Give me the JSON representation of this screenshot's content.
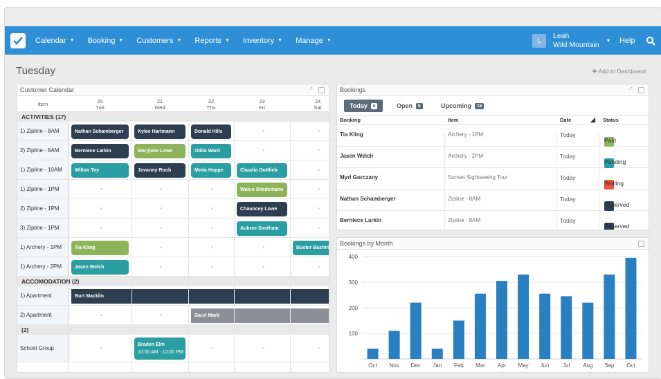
{
  "nav": {
    "items": [
      "Calendar",
      "Booking",
      "Customers",
      "Reports",
      "Inventory",
      "Manage"
    ],
    "user_initial": "L",
    "user_name": "Leah",
    "user_org": "Wild Mountain",
    "help": "Help"
  },
  "page": {
    "title": "Tuesday",
    "add_dashboard": "Add to Dashboard"
  },
  "calendar": {
    "title": "Customer Calendar",
    "item_header": "Item",
    "days": [
      {
        "num": "20",
        "day": "Tue"
      },
      {
        "num": "21",
        "day": "Wed"
      },
      {
        "num": "22",
        "day": "Thu"
      },
      {
        "num": "23",
        "day": "Fri"
      },
      {
        "num": "24",
        "day": "Sat"
      }
    ],
    "sections": [
      {
        "title": "ACTIVITIES (17)",
        "rows": [
          {
            "label": "1) Zipline - 8AM",
            "events": [
              {
                "col": 0,
                "span": 1,
                "text": "Nathan Schamberger",
                "color": "dark"
              },
              {
                "col": 1,
                "span": 1,
                "text": "Kylee Hartmann",
                "color": "dark"
              },
              {
                "col": 2,
                "span": 1,
                "text": "Donald Hills",
                "color": "dark"
              }
            ]
          },
          {
            "label": "2) Zipline - 8AM",
            "events": [
              {
                "col": 0,
                "span": 1,
                "text": "Berniece Larkin",
                "color": "dark"
              },
              {
                "col": 1,
                "span": 1,
                "text": "Maryjane Lowe",
                "color": "green"
              },
              {
                "col": 2,
                "span": 1,
                "text": "Otilia Ward",
                "color": "teal"
              }
            ]
          },
          {
            "label": "1) Zipline - 10AM",
            "events": [
              {
                "col": 0,
                "span": 1,
                "text": "Wilton Toy",
                "color": "teal"
              },
              {
                "col": 1,
                "span": 1,
                "text": "Jovanny Roob",
                "color": "dark"
              },
              {
                "col": 2,
                "span": 1,
                "text": "Meda Hoppe",
                "color": "teal"
              },
              {
                "col": 3,
                "span": 1,
                "text": "Claudia Gottlieb",
                "color": "teal"
              }
            ]
          },
          {
            "label": "1) Zipline - 1PM",
            "events": [
              {
                "col": 3,
                "span": 1,
                "text": "Waino Stiedemann",
                "color": "green"
              }
            ]
          },
          {
            "label": "2) Zipline - 1PM",
            "events": [
              {
                "col": 3,
                "span": 1,
                "text": "Chauncey Lowe",
                "color": "dark"
              }
            ]
          },
          {
            "label": "3) Zipline - 1PM",
            "events": [
              {
                "col": 3,
                "span": 1,
                "text": "Aubree Smitham",
                "color": "teal"
              }
            ]
          },
          {
            "label": "1) Archery - 1PM",
            "events": [
              {
                "col": 0,
                "span": 1,
                "text": "Tia Kling",
                "color": "green"
              },
              {
                "col": 4,
                "span": 1,
                "text": "Buster Bashirian",
                "color": "teal"
              }
            ]
          },
          {
            "label": "1) Archery - 2PM",
            "events": [
              {
                "col": 0,
                "span": 1,
                "text": "Jasen Welch",
                "color": "teal"
              }
            ]
          }
        ]
      },
      {
        "title": "ACCOMODATION (2)",
        "rows": [
          {
            "label": "1) Apartment",
            "events": [
              {
                "col": 0,
                "span": 5,
                "text": "Burt Macklin",
                "color": "dark"
              }
            ]
          },
          {
            "label": "2) Apartment",
            "events": [
              {
                "col": 2,
                "span": 3,
                "text": "Daryl Marb",
                "color": "gray"
              }
            ]
          }
        ]
      },
      {
        "title": "(2)",
        "rows": [
          {
            "label": "School Group",
            "tall": true,
            "events": [
              {
                "col": 1,
                "span": 1,
                "text": "Braden Elm",
                "sub": "10:00 AM - 12:00 PM",
                "color": "teal"
              }
            ]
          }
        ]
      }
    ]
  },
  "bookings": {
    "title": "Bookings",
    "tabs": [
      {
        "label": "Today",
        "count": "6"
      },
      {
        "label": "Open",
        "count": "6"
      },
      {
        "label": "Upcoming",
        "count": "15"
      }
    ],
    "columns": [
      "Booking",
      "Item",
      "Date",
      "Status"
    ],
    "rows": [
      {
        "name": "Tia Kling",
        "item": "Archery - 1PM",
        "date": "Today",
        "status": "Paid",
        "color": "#8db35b"
      },
      {
        "name": "Jasen Welch",
        "item": "Archery - 2PM",
        "date": "Today",
        "status": "Pending",
        "color": "#2a9ea2"
      },
      {
        "name": "Myrl Gorczany",
        "item": "Sunset Sightseeing Tour",
        "date": "Today",
        "status": "Waiting",
        "color": "#e8533a"
      },
      {
        "name": "Nathan Schamberger",
        "item": "Zipline - 8AM",
        "date": "Today",
        "status": "Reserved",
        "color": "#2d3e50"
      },
      {
        "name": "Berniece Larkin",
        "item": "Zipline - 8AM",
        "date": "Today",
        "status": "Reserved",
        "color": "#2d3e50"
      }
    ]
  },
  "chart_data": {
    "type": "bar",
    "title": "Bookings by Month",
    "categories": [
      "Oct",
      "Nov",
      "Dec",
      "Jan",
      "Feb",
      "Mar",
      "Apr",
      "May",
      "Jun",
      "Jul",
      "Aug",
      "Sep",
      "Oct"
    ],
    "values": [
      40,
      110,
      220,
      40,
      150,
      255,
      305,
      330,
      255,
      245,
      220,
      330,
      395
    ],
    "ylim": [
      0,
      400
    ],
    "yticks": [
      100,
      200,
      300,
      400
    ],
    "bar_color": "#2a7fc0",
    "grid": true
  }
}
